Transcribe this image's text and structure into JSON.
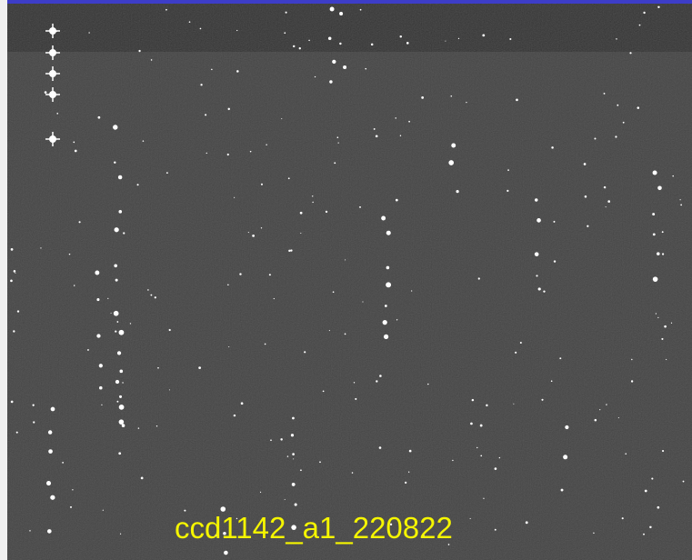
{
  "caption": "ccd1142_a1_220822"
}
